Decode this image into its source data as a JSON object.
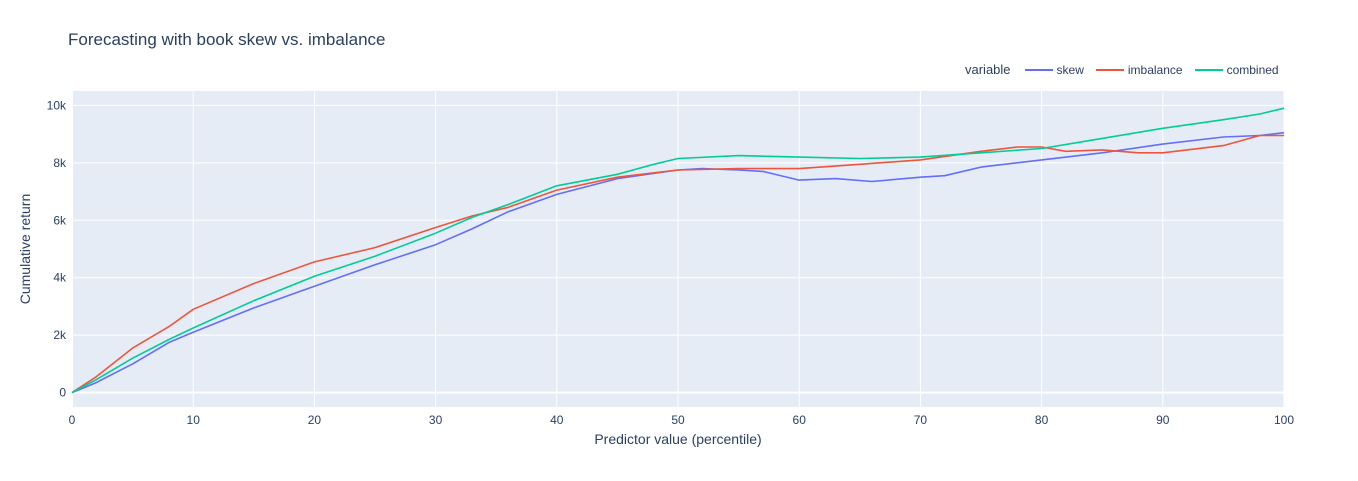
{
  "chart_data": {
    "type": "line",
    "title": "Forecasting with book skew vs. imbalance",
    "xlabel": "Predictor value (percentile)",
    "ylabel": "Cumulative return",
    "xlim": [
      0,
      100
    ],
    "ylim": [
      -500,
      10500
    ],
    "xticks": [
      0,
      10,
      20,
      30,
      40,
      50,
      60,
      70,
      80,
      90,
      100
    ],
    "yticks": [
      0,
      2000,
      4000,
      6000,
      8000,
      10000
    ],
    "ytick_labels": [
      "0",
      "2k",
      "4k",
      "6k",
      "8k",
      "10k"
    ],
    "grid": true,
    "legend": {
      "title": "variable",
      "placement": "top-right"
    },
    "series": [
      {
        "name": "skew",
        "color": "#636efa",
        "x": [
          0,
          2,
          5,
          8,
          10,
          15,
          20,
          25,
          30,
          33,
          36,
          40,
          45,
          50,
          52,
          55,
          57,
          60,
          63,
          66,
          70,
          72,
          75,
          80,
          85,
          90,
          95,
          98,
          100
        ],
        "y": [
          0,
          350,
          1000,
          1750,
          2100,
          2950,
          3700,
          4450,
          5150,
          5700,
          6300,
          6900,
          7450,
          7750,
          7800,
          7750,
          7700,
          7400,
          7450,
          7350,
          7500,
          7550,
          7850,
          8100,
          8350,
          8650,
          8900,
          8950,
          9050
        ]
      },
      {
        "name": "imbalance",
        "color": "#ef553b",
        "x": [
          0,
          2,
          5,
          8,
          10,
          15,
          20,
          25,
          30,
          33,
          36,
          40,
          45,
          50,
          55,
          60,
          65,
          70,
          75,
          78,
          80,
          82,
          85,
          88,
          90,
          95,
          98,
          100
        ],
        "y": [
          0,
          550,
          1550,
          2300,
          2900,
          3800,
          4550,
          5050,
          5750,
          6150,
          6450,
          7050,
          7500,
          7750,
          7800,
          7800,
          7950,
          8100,
          8400,
          8550,
          8550,
          8400,
          8450,
          8350,
          8350,
          8600,
          8950,
          8950
        ]
      },
      {
        "name": "combined",
        "color": "#00cc96",
        "x": [
          0,
          2,
          5,
          8,
          10,
          15,
          20,
          25,
          30,
          33,
          36,
          40,
          45,
          48,
          50,
          55,
          60,
          65,
          70,
          75,
          80,
          85,
          90,
          95,
          98,
          100
        ],
        "y": [
          0,
          450,
          1200,
          1850,
          2250,
          3200,
          4050,
          4750,
          5550,
          6100,
          6550,
          7200,
          7600,
          7950,
          8150,
          8250,
          8200,
          8150,
          8200,
          8350,
          8500,
          8850,
          9200,
          9500,
          9700,
          9900
        ]
      }
    ]
  }
}
